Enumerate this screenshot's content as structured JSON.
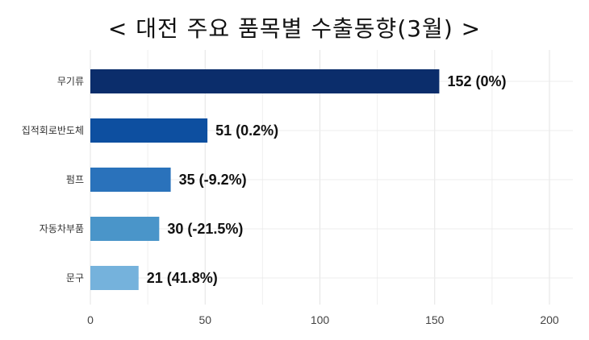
{
  "chart_data": {
    "type": "bar",
    "orientation": "horizontal",
    "title": "< 대전 주요 품목별 수출동향(3월) >",
    "categories": [
      "무기류",
      "집적회로반도체",
      "펌프",
      "자동차부품",
      "문구"
    ],
    "values": [
      152,
      51,
      35,
      30,
      21
    ],
    "value_labels": [
      "152 (0%)",
      "51 (0.2%)",
      "35 (-9.2%)",
      "30 (-21.5%)",
      "21 (41.8%)"
    ],
    "bar_colors": [
      "#0b2d6b",
      "#0d4fa0",
      "#2a72bb",
      "#4a95c9",
      "#75b2dc"
    ],
    "xlabel": "",
    "ylabel": "",
    "xlim": [
      0,
      200
    ],
    "xticks": [
      0,
      50,
      100,
      150,
      200
    ],
    "grid": true,
    "legend": "none"
  }
}
